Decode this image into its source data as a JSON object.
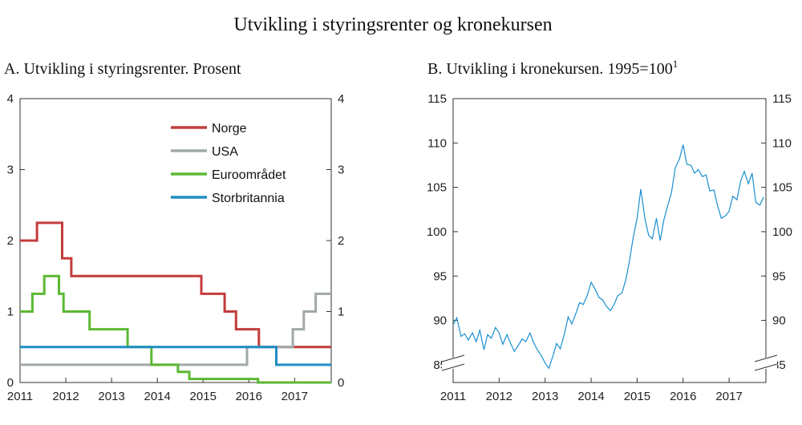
{
  "title": "Utvikling i styringsrenter og kronekursen",
  "chart_data": [
    {
      "type": "line",
      "panel": "A",
      "title": "A.  Utvikling i styringsrenter. Prosent",
      "xlim": [
        2011,
        2017.8
      ],
      "ylim": [
        0,
        4
      ],
      "x_ticks": [
        "2011",
        "2012",
        "2013",
        "2014",
        "2015",
        "2016",
        "2017"
      ],
      "y_ticks": [
        "0",
        "1",
        "2",
        "3",
        "4"
      ],
      "legend_position": "top-right",
      "step": true,
      "series": [
        {
          "name": "Norge",
          "color": "#c43c3c",
          "points": [
            [
              2011,
              2.0
            ],
            [
              2011.37,
              2.0
            ],
            [
              2011.37,
              2.25
            ],
            [
              2011.92,
              2.25
            ],
            [
              2011.92,
              1.75
            ],
            [
              2012.12,
              1.75
            ],
            [
              2012.12,
              1.5
            ],
            [
              2014.96,
              1.5
            ],
            [
              2014.96,
              1.25
            ],
            [
              2015.47,
              1.25
            ],
            [
              2015.47,
              1.0
            ],
            [
              2015.72,
              1.0
            ],
            [
              2015.72,
              0.75
            ],
            [
              2016.22,
              0.75
            ],
            [
              2016.22,
              0.5
            ],
            [
              2017.8,
              0.5
            ]
          ]
        },
        {
          "name": "USA",
          "color": "#a0a8aa",
          "points": [
            [
              2011,
              0.25
            ],
            [
              2015.96,
              0.25
            ],
            [
              2015.96,
              0.5
            ],
            [
              2016.96,
              0.5
            ],
            [
              2016.96,
              0.75
            ],
            [
              2017.2,
              0.75
            ],
            [
              2017.2,
              1.0
            ],
            [
              2017.46,
              1.0
            ],
            [
              2017.46,
              1.25
            ],
            [
              2017.8,
              1.25
            ]
          ]
        },
        {
          "name": "Euroområdet",
          "color": "#5cb832",
          "points": [
            [
              2011,
              1.0
            ],
            [
              2011.27,
              1.0
            ],
            [
              2011.27,
              1.25
            ],
            [
              2011.53,
              1.25
            ],
            [
              2011.53,
              1.5
            ],
            [
              2011.85,
              1.5
            ],
            [
              2011.85,
              1.25
            ],
            [
              2011.95,
              1.25
            ],
            [
              2011.95,
              1.0
            ],
            [
              2012.52,
              1.0
            ],
            [
              2012.52,
              0.75
            ],
            [
              2013.35,
              0.75
            ],
            [
              2013.35,
              0.5
            ],
            [
              2013.87,
              0.5
            ],
            [
              2013.87,
              0.25
            ],
            [
              2014.45,
              0.25
            ],
            [
              2014.45,
              0.15
            ],
            [
              2014.7,
              0.15
            ],
            [
              2014.7,
              0.05
            ],
            [
              2016.2,
              0.05
            ],
            [
              2016.2,
              0.0
            ],
            [
              2017.8,
              0.0
            ]
          ]
        },
        {
          "name": "Storbritannia",
          "color": "#1f8dc4",
          "points": [
            [
              2011,
              0.5
            ],
            [
              2016.6,
              0.5
            ],
            [
              2016.6,
              0.25
            ],
            [
              2017.8,
              0.25
            ]
          ]
        }
      ]
    },
    {
      "type": "line",
      "panel": "B",
      "title": "B.  Utvikling i kronekursen. 1995=100",
      "title_superscript": "1",
      "xlim": [
        2011,
        2017.8
      ],
      "ylim": [
        83,
        115
      ],
      "x_ticks": [
        "2011",
        "2012",
        "2013",
        "2014",
        "2015",
        "2016",
        "2017"
      ],
      "y_ticks": [
        "85",
        "90",
        "95",
        "100",
        "105",
        "110",
        "115"
      ],
      "axis_break": true,
      "series": [
        {
          "name": "Kronekurs",
          "color": "#1a8fd0",
          "points": [
            [
              2011.0,
              89.5
            ],
            [
              2011.08,
              90.3
            ],
            [
              2011.17,
              88.2
            ],
            [
              2011.25,
              88.5
            ],
            [
              2011.33,
              87.8
            ],
            [
              2011.42,
              88.6
            ],
            [
              2011.5,
              87.6
            ],
            [
              2011.58,
              88.9
            ],
            [
              2011.67,
              86.7
            ],
            [
              2011.75,
              88.4
            ],
            [
              2011.83,
              88.0
            ],
            [
              2011.92,
              89.2
            ],
            [
              2012.0,
              88.6
            ],
            [
              2012.08,
              87.3
            ],
            [
              2012.17,
              88.4
            ],
            [
              2012.25,
              87.4
            ],
            [
              2012.33,
              86.5
            ],
            [
              2012.42,
              87.2
            ],
            [
              2012.5,
              87.9
            ],
            [
              2012.58,
              87.6
            ],
            [
              2012.67,
              88.6
            ],
            [
              2012.75,
              87.5
            ],
            [
              2012.83,
              86.7
            ],
            [
              2012.92,
              86.0
            ],
            [
              2013.0,
              85.2
            ],
            [
              2013.08,
              84.6
            ],
            [
              2013.17,
              86.0
            ],
            [
              2013.25,
              87.4
            ],
            [
              2013.33,
              86.8
            ],
            [
              2013.42,
              88.5
            ],
            [
              2013.5,
              90.4
            ],
            [
              2013.58,
              89.6
            ],
            [
              2013.67,
              90.8
            ],
            [
              2013.75,
              92.0
            ],
            [
              2013.83,
              91.8
            ],
            [
              2013.92,
              92.9
            ],
            [
              2014.0,
              94.3
            ],
            [
              2014.08,
              93.6
            ],
            [
              2014.17,
              92.6
            ],
            [
              2014.25,
              92.3
            ],
            [
              2014.33,
              91.6
            ],
            [
              2014.42,
              91.1
            ],
            [
              2014.5,
              91.8
            ],
            [
              2014.58,
              92.8
            ],
            [
              2014.67,
              93.1
            ],
            [
              2014.75,
              94.5
            ],
            [
              2014.83,
              96.6
            ],
            [
              2014.92,
              99.5
            ],
            [
              2015.0,
              101.5
            ],
            [
              2015.08,
              104.8
            ],
            [
              2015.17,
              101.4
            ],
            [
              2015.25,
              99.6
            ],
            [
              2015.33,
              99.2
            ],
            [
              2015.42,
              101.5
            ],
            [
              2015.5,
              99.0
            ],
            [
              2015.58,
              101.3
            ],
            [
              2015.67,
              103.0
            ],
            [
              2015.75,
              104.5
            ],
            [
              2015.83,
              107.2
            ],
            [
              2015.92,
              108.2
            ],
            [
              2016.0,
              109.8
            ],
            [
              2016.08,
              107.6
            ],
            [
              2016.17,
              107.5
            ],
            [
              2016.25,
              106.6
            ],
            [
              2016.33,
              107.0
            ],
            [
              2016.42,
              106.2
            ],
            [
              2016.5,
              106.4
            ],
            [
              2016.58,
              104.6
            ],
            [
              2016.67,
              104.7
            ],
            [
              2016.75,
              102.9
            ],
            [
              2016.83,
              101.5
            ],
            [
              2016.92,
              101.8
            ],
            [
              2017.0,
              102.3
            ],
            [
              2017.08,
              104.0
            ],
            [
              2017.17,
              103.6
            ],
            [
              2017.25,
              105.7
            ],
            [
              2017.33,
              106.8
            ],
            [
              2017.42,
              105.4
            ],
            [
              2017.5,
              106.6
            ],
            [
              2017.58,
              103.3
            ],
            [
              2017.67,
              103.0
            ],
            [
              2017.75,
              103.9
            ]
          ]
        }
      ]
    }
  ]
}
